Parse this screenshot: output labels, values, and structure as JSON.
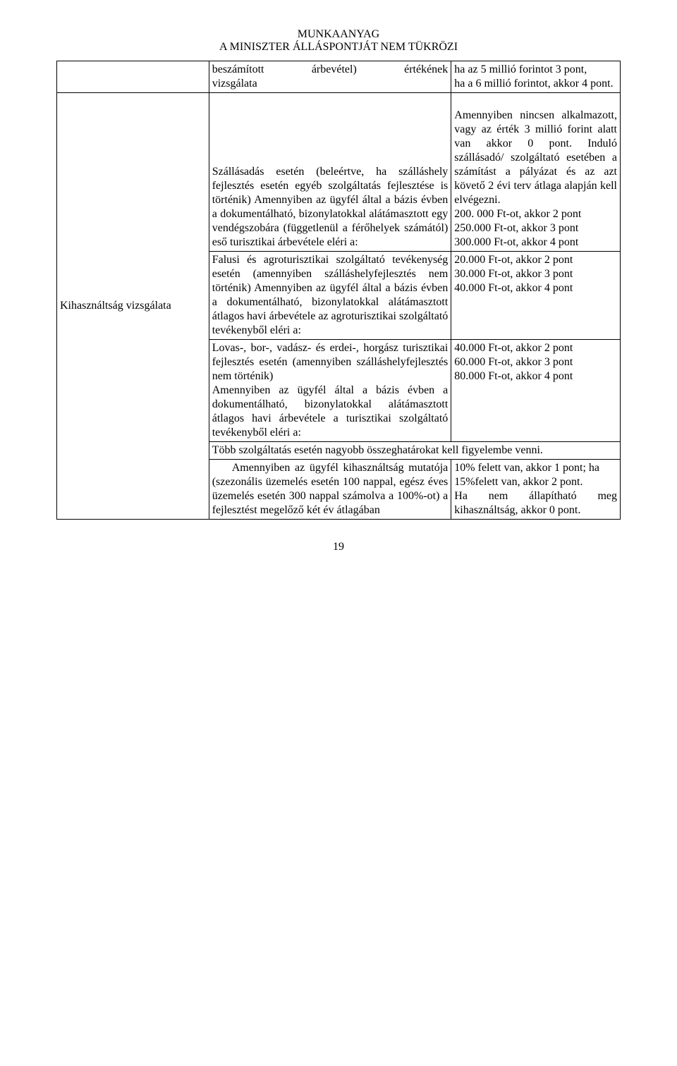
{
  "header": {
    "line1": "MUNKAANYAG",
    "line2": "A MINISZTER ÁLLÁSPONTJÁT NEM TÜKRÖZI"
  },
  "pageNumber": "19",
  "rows": {
    "r0": {
      "col1": "",
      "col2": "beszámított árbevétel) értékének vizsgálata",
      "col3": "ha az 5 millió forintot 3 pont,\nha a 6 millió forintot, akkor 4 pont."
    },
    "r1": {
      "col1": "Kihasználtság vizsgálata",
      "sub0": {
        "col2": "Szállásadás esetén (beleértve, ha szálláshely fejlesztés esetén egyéb szolgáltatás fejlesztése is történik) Amennyiben az ügyfél által a bázis évben a dokumentálható, bizonylatokkal alátámasztott egy vendégszobára (függetlenül a férőhelyek számától) eső turisztikai árbevétele eléri a:",
        "col3_p1": "Amennyiben nincsen alkalmazott, vagy az érték 3 millió forint alatt van akkor 0 pont. Induló szállásadó/ szolgáltató esetében a számítást a pályázat és az azt követő 2 évi terv átlaga alapján kell elvégezni.",
        "col3_p2": "200. 000 Ft-ot, akkor 2 pont",
        "col3_p3": "250.000 Ft-ot, akkor 3 pont",
        "col3_p4": "300.000 Ft-ot, akkor 4 pont"
      },
      "sub1": {
        "col2": "Falusi és agroturisztikai szolgáltató tevékenység esetén (amennyiben szálláshelyfejlesztés nem történik) Amennyiben az ügyfél által a bázis évben a dokumentálható, bizonylatokkal alátámasztott átlagos havi árbevétele az agroturisztikai szolgáltató tevékenyből eléri a:",
        "col3_l1": "20.000 Ft-ot, akkor 2 pont",
        "col3_l2": "30.000 Ft-ot, akkor 3 pont",
        "col3_l3": "40.000 Ft-ot, akkor 4 pont"
      },
      "sub2": {
        "col2": "Lovas-, bor-, vadász- és erdei-, horgász turisztikai fejlesztés esetén (amennyiben szálláshelyfejlesztés nem történik)\nAmennyiben az ügyfél által a bázis évben a dokumentálható, bizonylatokkal alátámasztott átlagos havi árbevétele a turisztikai szolgáltató tevékenyből eléri a:",
        "col3_l1": "40.000 Ft-ot, akkor 2 pont",
        "col3_l2": "60.000 Ft-ot, akkor 3 pont",
        "col3_l3": "80.000 Ft-ot, akkor 4 pont"
      },
      "sub3": {
        "merged": "Több szolgáltatás esetén nagyobb összeghatárokat kell figyelembe venni."
      },
      "sub4": {
        "col2_prefix": "Amennyiben az ügyfél",
        "col2_rest": "kihasználtság mutatója (szezonális üzemelés esetén 100 nappal, egész éves üzemelés esetén 300 nappal számolva a 100%-ot) a fejlesztést megelőző két év átlagában",
        "col3_l1": "10% felett van, akkor 1 pont; ha",
        "col3_l2": "15%felett van, akkor 2 pont.",
        "col3_l3": "Ha nem állapítható meg kihasználtság, akkor 0 pont."
      }
    }
  }
}
